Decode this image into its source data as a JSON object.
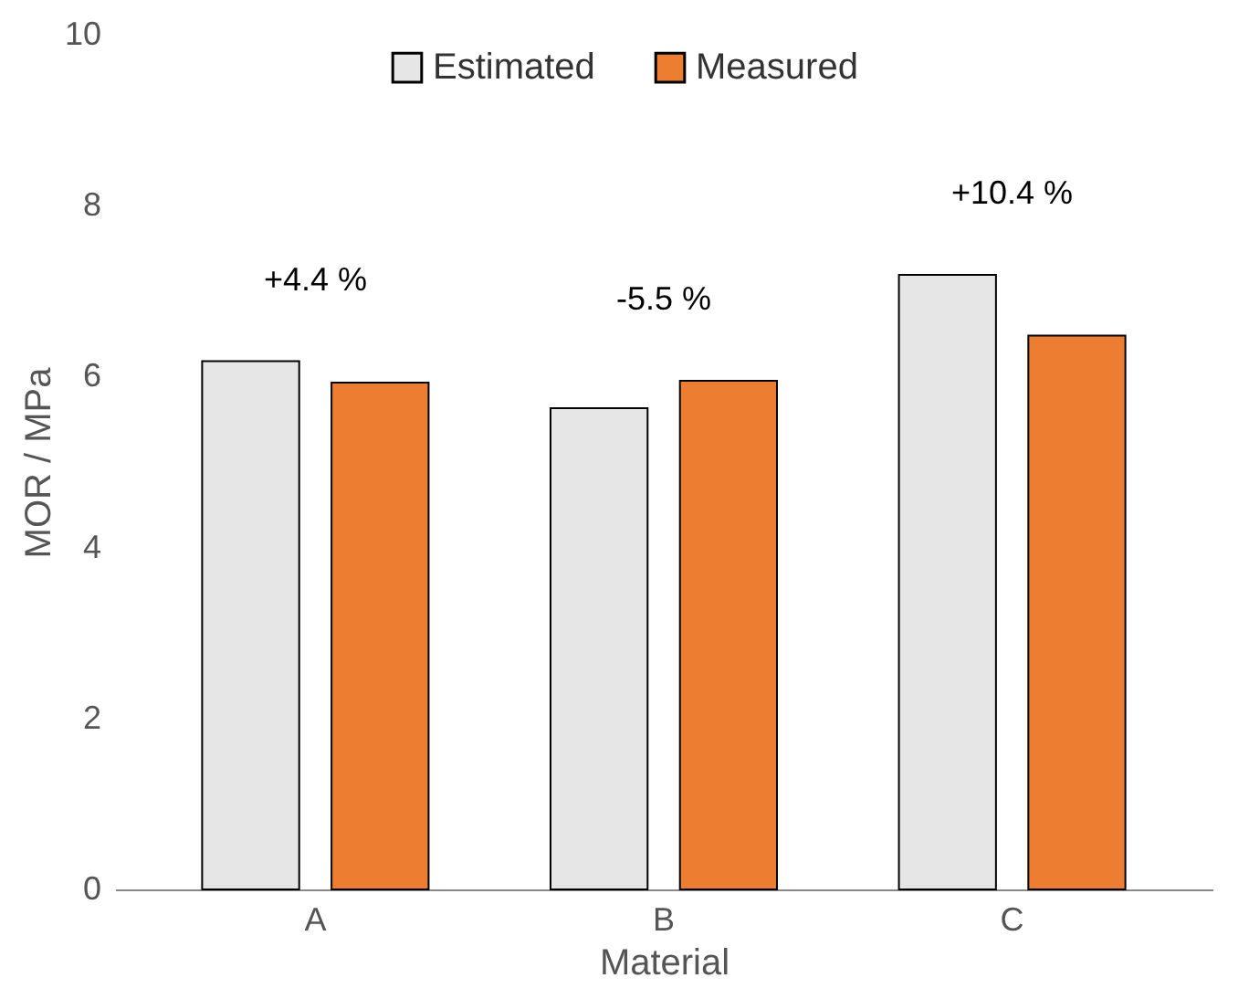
{
  "chart_data": {
    "type": "bar",
    "xlabel": "Material",
    "ylabel": "MOR / MPa",
    "categories": [
      "A",
      "B",
      "C"
    ],
    "series": [
      {
        "name": "Estimated",
        "color": "#e6e6e6",
        "values": [
          6.18,
          5.63,
          7.19
        ]
      },
      {
        "name": "Measured",
        "color": "#ed7d31",
        "values": [
          5.93,
          5.95,
          6.48
        ]
      }
    ],
    "ylim": [
      0,
      10
    ],
    "yticks": [
      0,
      2,
      4,
      6,
      8,
      10
    ],
    "grid": false,
    "legend": "top",
    "annotations": [
      "+4.4 %",
      "-5.5 %",
      "+10.4 %"
    ]
  }
}
